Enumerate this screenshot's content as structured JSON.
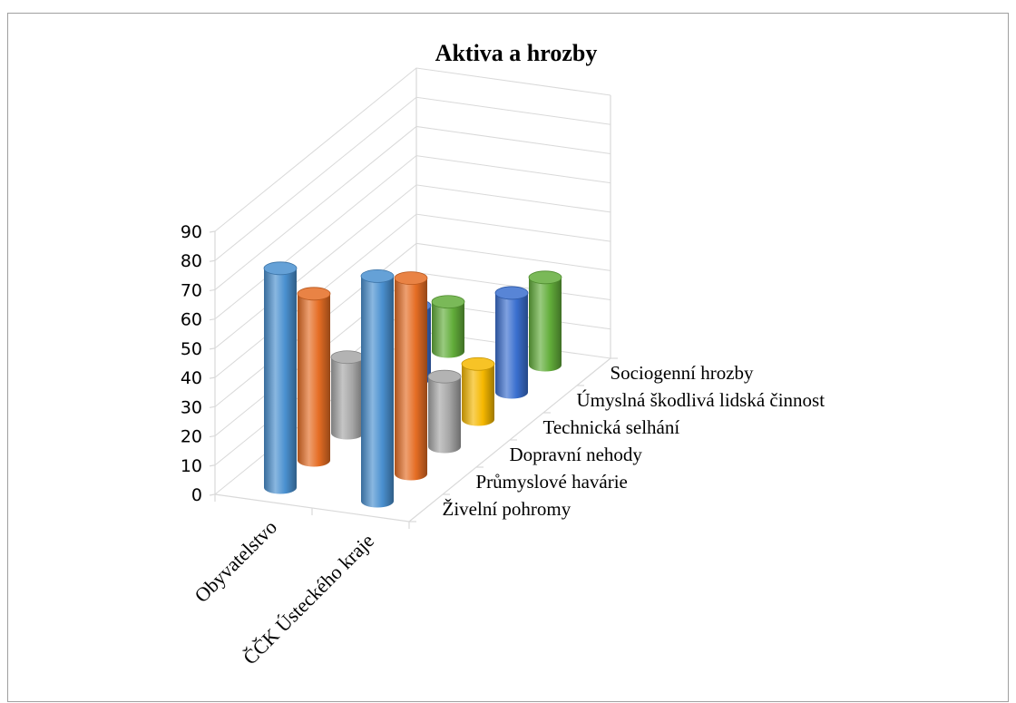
{
  "chart_data": {
    "type": "bar",
    "subtype": "3d-cylinder",
    "title": "Aktiva a hrozby",
    "categories": [
      "Obyvatelstvo",
      "ČČK Ústeckého kraje"
    ],
    "series": [
      {
        "name": "Živelní pohromy",
        "color": "#4a90d0",
        "values": [
          75,
          77
        ]
      },
      {
        "name": "Průmyslové havárie",
        "color": "#e56d24",
        "values": [
          57,
          67
        ]
      },
      {
        "name": "Dopravní nehody",
        "color": "#a6a6a6",
        "values": [
          26,
          24
        ]
      },
      {
        "name": "Technická selhání",
        "color": "#f5b800",
        "values": [
          0,
          19
        ]
      },
      {
        "name": "Úmyslná škodlivá lidská činnost",
        "color": "#3a6fcf",
        "values": [
          25,
          34
        ]
      },
      {
        "name": "Sociogenní hrozby",
        "color": "#62ad3a",
        "values": [
          17,
          30
        ]
      }
    ],
    "yticks": [
      "0",
      "10",
      "20",
      "30",
      "40",
      "50",
      "60",
      "70",
      "80",
      "90"
    ],
    "ylim": [
      0,
      90
    ],
    "grid": true,
    "legend": "none"
  }
}
